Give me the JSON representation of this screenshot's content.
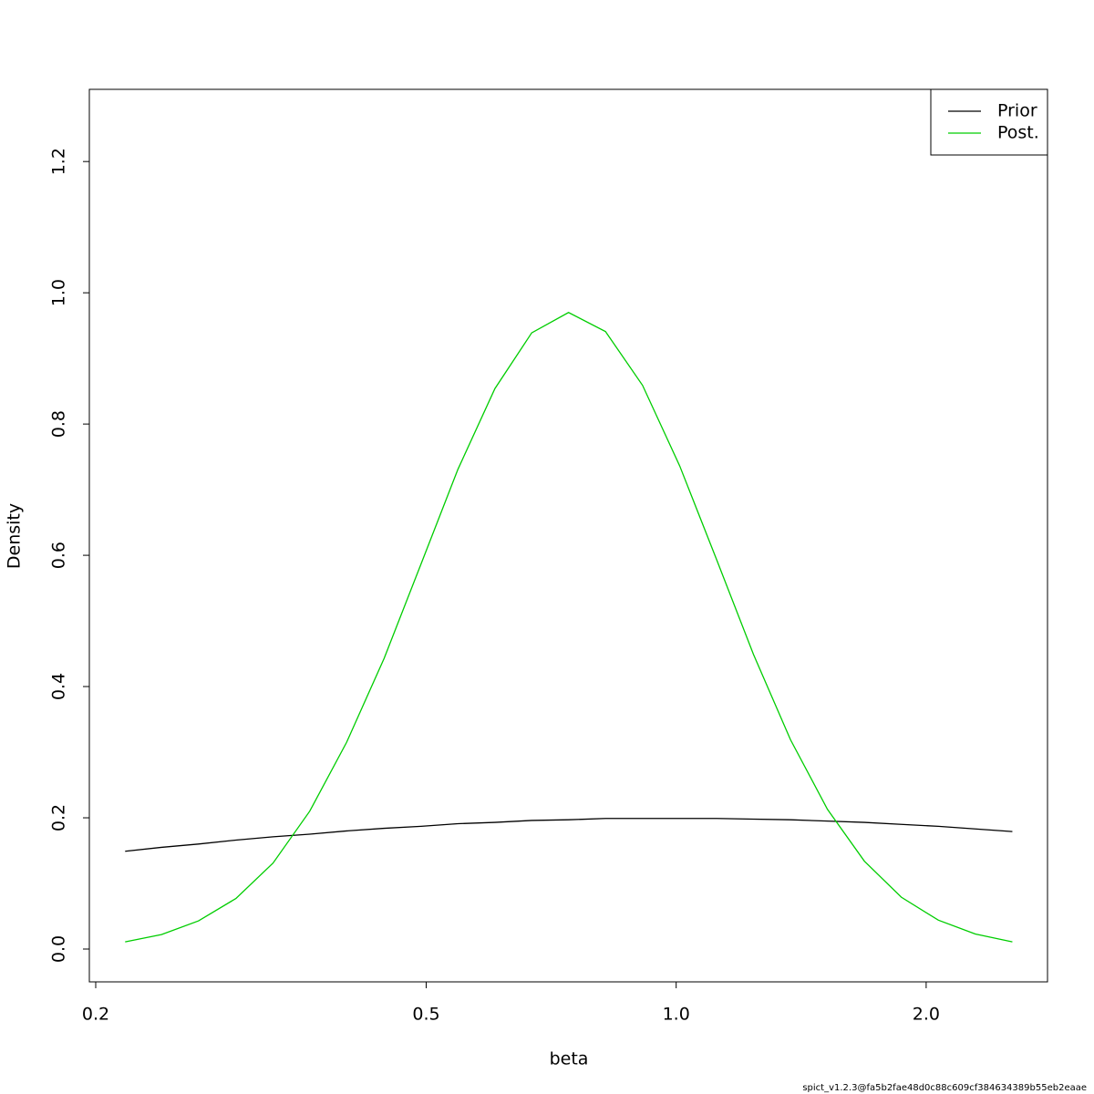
{
  "chart_data": {
    "type": "line",
    "xlabel": "beta",
    "ylabel": "Density",
    "annotation": "spict_v1.2.3@fa5b2fae48d0c88c609cf384634389b55eb2eaae",
    "x": [
      0.217,
      0.24,
      0.266,
      0.295,
      0.327,
      0.362,
      0.401,
      0.445,
      0.493,
      0.546,
      0.605,
      0.67,
      0.742,
      0.822,
      0.911,
      1.01,
      1.119,
      1.239,
      1.373,
      1.521,
      1.685,
      1.867,
      2.069,
      2.292,
      2.54
    ],
    "series": [
      {
        "name": "Prior",
        "color": "#000000",
        "values": [
          0.149,
          0.155,
          0.16,
          0.166,
          0.171,
          0.175,
          0.18,
          0.184,
          0.187,
          0.191,
          0.193,
          0.196,
          0.197,
          0.199,
          0.199,
          0.199,
          0.199,
          0.198,
          0.197,
          0.195,
          0.193,
          0.19,
          0.187,
          0.183,
          0.179
        ]
      },
      {
        "name": "Post.",
        "color": "#00cd00",
        "values": [
          0.011,
          0.022,
          0.043,
          0.077,
          0.131,
          0.21,
          0.315,
          0.443,
          0.587,
          0.731,
          0.854,
          0.939,
          0.97,
          0.941,
          0.859,
          0.736,
          0.593,
          0.449,
          0.319,
          0.213,
          0.134,
          0.079,
          0.044,
          0.023,
          0.011
        ]
      }
    ],
    "xlog": true,
    "xlim": [
      0.1965,
      2.8
    ],
    "xticks": [
      0.2,
      0.5,
      {
        "value": 1.0,
        "label": "1.0"
      },
      {
        "value": 2.0,
        "label": "2.0"
      }
    ],
    "ylim": [
      -0.05,
      1.31
    ],
    "yticks": [
      {
        "value": 0.0,
        "label": "0.0"
      },
      0.2,
      0.4,
      0.6,
      0.8,
      {
        "value": 1.0,
        "label": "1.0"
      },
      1.2
    ],
    "legend": "top-right"
  }
}
